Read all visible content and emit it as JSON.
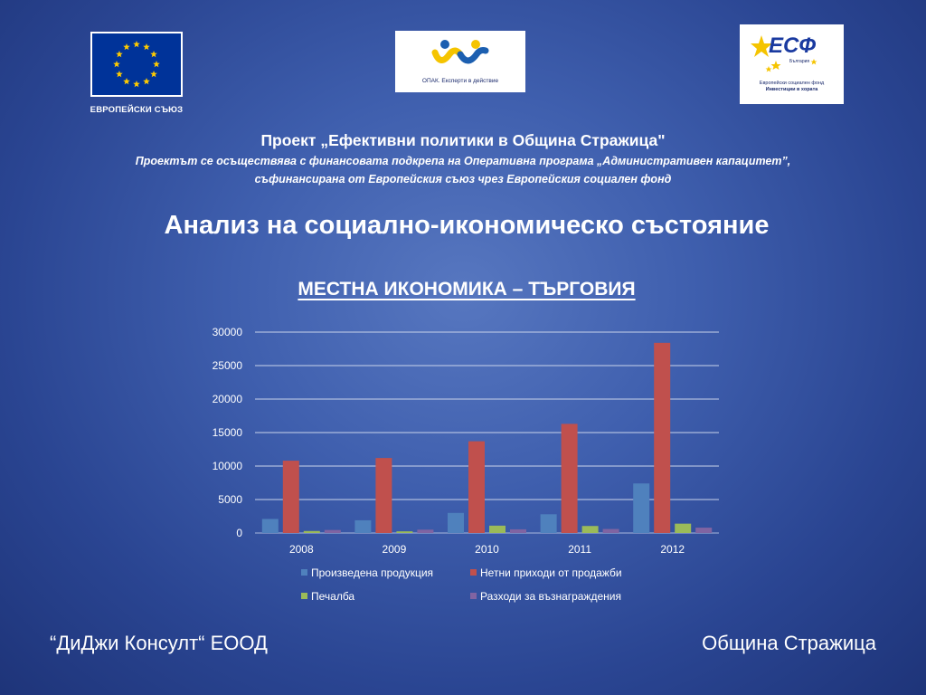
{
  "logos": {
    "eu_caption": "ЕВРОПЕЙСКИ СЪЮЗ",
    "opak_caption": "ОПАК. Експерти в действие",
    "esf_letters": "ЕСФ",
    "esf_sub": "България",
    "esf_caption1": "Европейски социален фонд",
    "esf_caption2": "Инвестиции в хората"
  },
  "header": {
    "project_title": "Проект „Ефективни политики в Община Стражица\"",
    "project_sub1": "Проектът се осъществява с финансовата подкрепа на Оперативна програма „Административен капацитет”,",
    "project_sub2": "съфинансирана от Европейския съюз чрез Европейския социален фонд"
  },
  "main_title": "Анализ на социално-икономическо състояние",
  "chart_data": {
    "type": "bar",
    "title": "МЕСТНА ИКОНОМИКА – ТЪРГОВИЯ",
    "categories": [
      "2008",
      "2009",
      "2010",
      "2011",
      "2012"
    ],
    "series": [
      {
        "name": "Произведена продукция",
        "color": "#4f81bd",
        "values": [
          2100,
          1900,
          3000,
          2800,
          7400
        ]
      },
      {
        "name": "Нетни приходи от продажби",
        "color": "#c0504d",
        "values": [
          10800,
          11200,
          13700,
          16300,
          28400
        ]
      },
      {
        "name": "Печалба",
        "color": "#9bbb59",
        "values": [
          300,
          250,
          1100,
          1050,
          1400
        ]
      },
      {
        "name": "Разходи за възнаграждения",
        "color": "#8064a2",
        "values": [
          450,
          500,
          550,
          600,
          800
        ]
      }
    ],
    "ylim": [
      0,
      30000
    ],
    "yticks": [
      0,
      5000,
      10000,
      15000,
      20000,
      25000,
      30000
    ],
    "grid": true,
    "legend": "bottom"
  },
  "footer": {
    "left": "“ДиДжи Консулт“ ЕООД",
    "right": "Община Стражица"
  }
}
